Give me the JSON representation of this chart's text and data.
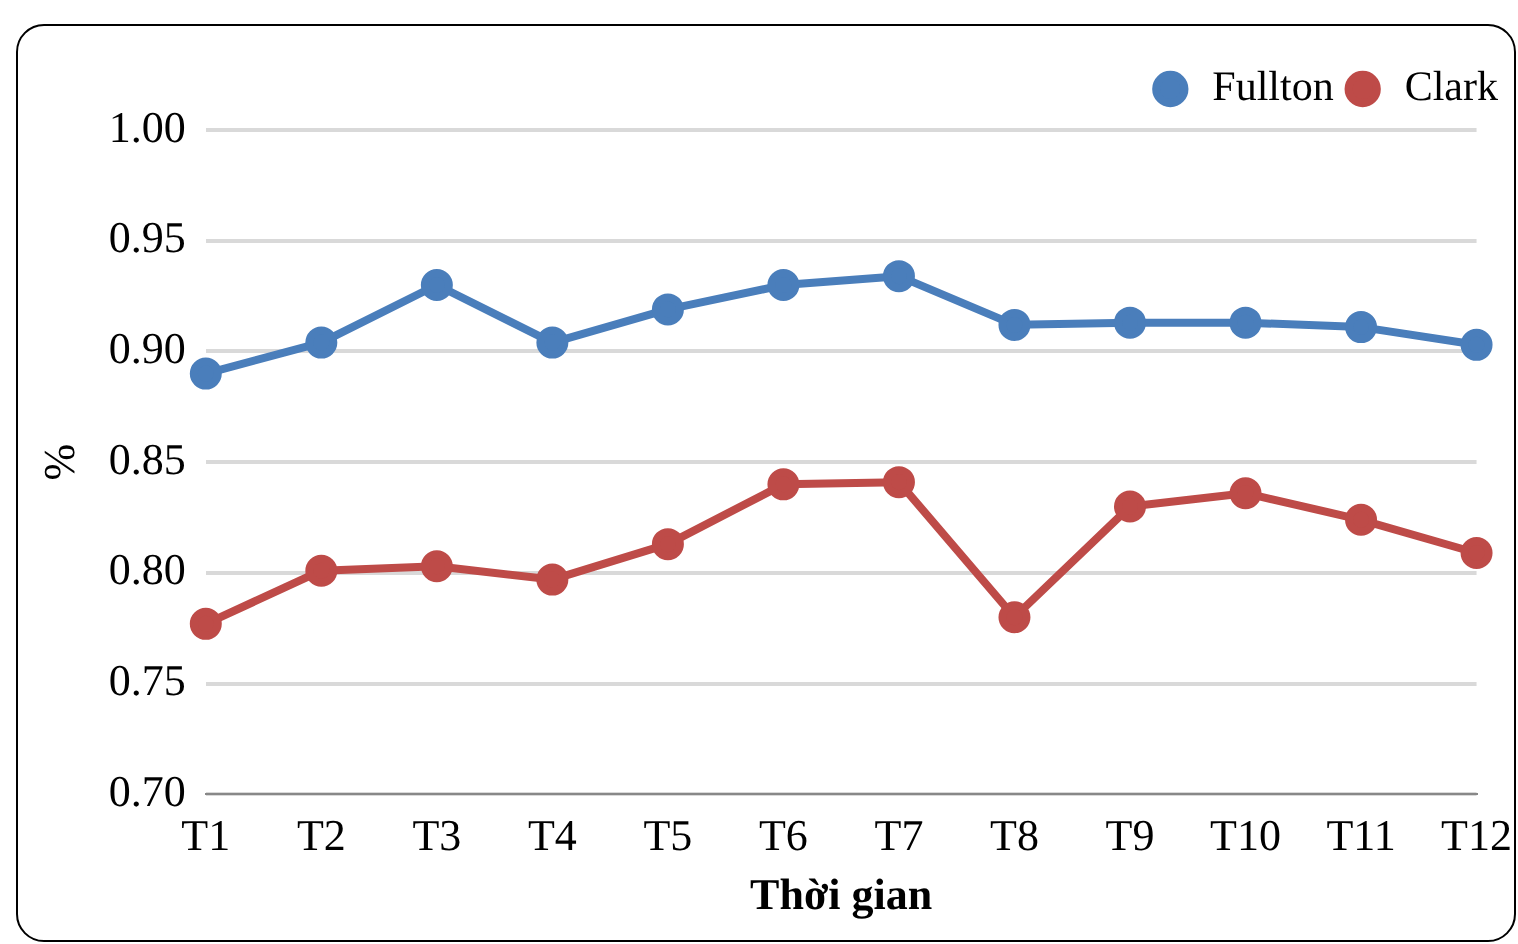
{
  "chart_data": {
    "type": "line",
    "xlabel": "Thời gian",
    "ylabel": "%",
    "categories": [
      "T1",
      "T2",
      "T3",
      "T4",
      "T5",
      "T6",
      "T7",
      "T8",
      "T9",
      "T10",
      "T11",
      "T12"
    ],
    "series": [
      {
        "name": "Fullton",
        "color": "#4a7ebb",
        "values": [
          0.89,
          0.904,
          0.93,
          0.904,
          0.919,
          0.93,
          0.934,
          0.912,
          0.913,
          0.913,
          0.911,
          0.903
        ]
      },
      {
        "name": "Clark",
        "color": "#be4b48",
        "values": [
          0.777,
          0.801,
          0.803,
          0.797,
          0.813,
          0.84,
          0.841,
          0.78,
          0.83,
          0.836,
          0.824,
          0.809
        ]
      }
    ],
    "ylim": [
      0.7,
      1.0
    ],
    "yticks": [
      {
        "value": 0.7,
        "label": "0.70"
      },
      0.75,
      {
        "value": 0.8,
        "label": "0.80"
      },
      0.85,
      {
        "value": 0.9,
        "label": "0.90"
      },
      0.95,
      {
        "value": 1,
        "label": "1.00"
      }
    ],
    "grid": "y",
    "legend": "top right",
    "marker": "circle",
    "line_style": "solid"
  }
}
